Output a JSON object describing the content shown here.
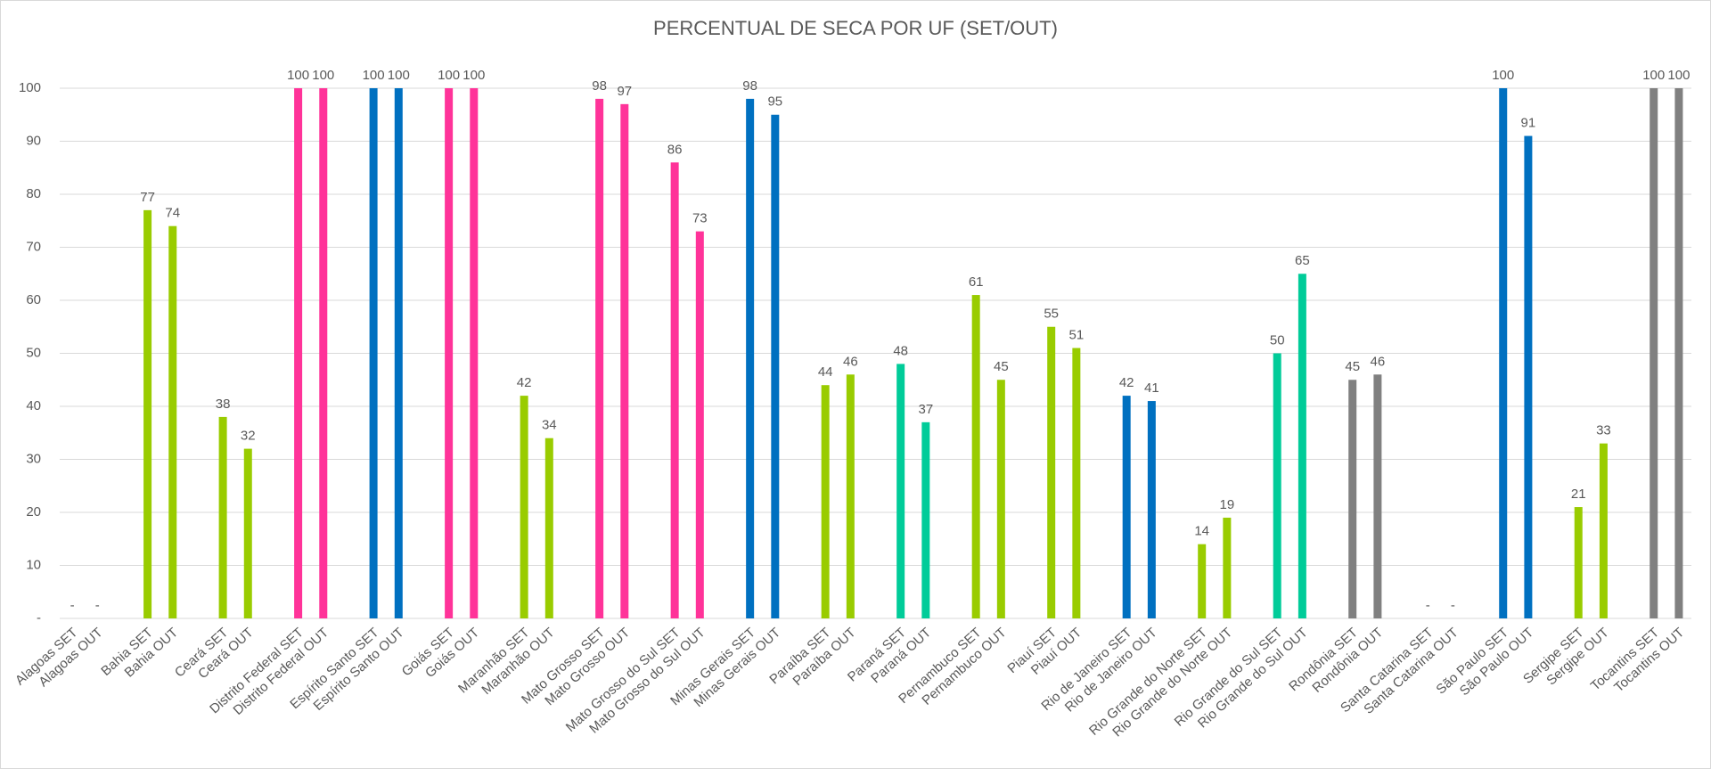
{
  "chart_data": {
    "type": "bar",
    "title": "PERCENTUAL DE SECA POR UF (SET/OUT)",
    "categories": [
      "Alagoas SET",
      "Alagoas OUT",
      null,
      "Bahia SET",
      "Bahia OUT",
      null,
      "Ceará SET",
      "Ceará OUT",
      null,
      "Distrito Federal SET",
      "Distrito Federal OUT",
      null,
      "Espírito Santo SET",
      "Espírito Santo OUT",
      null,
      "Goiás SET",
      "Goiás OUT",
      null,
      "Maranhão SET",
      "Maranhão OUT",
      null,
      "Mato Grosso SET",
      "Mato Grosso OUT",
      null,
      "Mato Grosso do Sul SET",
      "Mato Grosso do Sul OUT",
      null,
      "Minas Gerais SET",
      "Minas Gerais OUT",
      null,
      "Paraíba SET",
      "Paraíba OUT",
      null,
      "Paraná SET",
      "Paraná OUT",
      null,
      "Pernambuco SET",
      "Pernambuco OUT",
      null,
      "Piauí SET",
      "Piauí OUT",
      null,
      "Rio de Janeiro SET",
      "Rio de Janeiro OUT",
      null,
      "Rio Grande do Norte SET",
      "Rio Grande do Norte OUT",
      null,
      "Rio Grande do Sul SET",
      "Rio Grande do Sul OUT",
      null,
      "Rondônia SET",
      "Rondônia OUT",
      null,
      "Santa Catarina SET",
      "Santa Catarina OUT",
      null,
      "São Paulo SET",
      "São Paulo OUT",
      null,
      "Sergipe SET",
      "Sergipe OUT",
      null,
      "Tocantins SET",
      "Tocantins OUT"
    ],
    "values": [
      null,
      null,
      null,
      77,
      74,
      null,
      38,
      32,
      null,
      100,
      100,
      null,
      100,
      100,
      null,
      100,
      100,
      null,
      42,
      34,
      null,
      98,
      97,
      null,
      86,
      73,
      null,
      98,
      95,
      null,
      44,
      46,
      null,
      48,
      37,
      null,
      61,
      45,
      null,
      55,
      51,
      null,
      42,
      41,
      null,
      14,
      19,
      null,
      50,
      65,
      null,
      45,
      46,
      null,
      null,
      null,
      null,
      100,
      91,
      null,
      21,
      33,
      null,
      100,
      100
    ],
    "value_labels": [
      "-",
      "-",
      null,
      "77",
      "74",
      null,
      "38",
      "32",
      null,
      "100",
      "100",
      null,
      "100",
      "100",
      null,
      "100",
      "100",
      null,
      "42",
      "34",
      null,
      "98",
      "97",
      null,
      "86",
      "73",
      null,
      "98",
      "95",
      null,
      "44",
      "46",
      null,
      "48",
      "37",
      null,
      "61",
      "45",
      null,
      "55",
      "51",
      null,
      "42",
      "41",
      null,
      "14",
      "19",
      null,
      "50",
      "65",
      null,
      "45",
      "46",
      null,
      "-",
      "-",
      null,
      "100",
      "91",
      null,
      "21",
      "33",
      null,
      "100",
      "100"
    ],
    "colors": [
      null,
      null,
      null,
      "#99cc00",
      "#99cc00",
      null,
      "#99cc00",
      "#99cc00",
      null,
      "#ff3399",
      "#ff3399",
      null,
      "#0070c0",
      "#0070c0",
      null,
      "#ff3399",
      "#ff3399",
      null,
      "#99cc00",
      "#99cc00",
      null,
      "#ff3399",
      "#ff3399",
      null,
      "#ff3399",
      "#ff3399",
      null,
      "#0070c0",
      "#0070c0",
      null,
      "#99cc00",
      "#99cc00",
      null,
      "#00cc99",
      "#00cc99",
      null,
      "#99cc00",
      "#99cc00",
      null,
      "#99cc00",
      "#99cc00",
      null,
      "#0070c0",
      "#0070c0",
      null,
      "#99cc00",
      "#99cc00",
      null,
      "#00cc99",
      "#00cc99",
      null,
      "#808080",
      "#808080",
      null,
      null,
      null,
      null,
      "#0070c0",
      "#0070c0",
      null,
      "#99cc00",
      "#99cc00",
      null,
      "#808080",
      "#808080"
    ],
    "ylim": [
      0,
      100
    ],
    "yticks": [
      {
        "value": 0,
        "label": "-"
      },
      10,
      20,
      30,
      40,
      50,
      60,
      70,
      80,
      90,
      100
    ],
    "grid": true
  }
}
